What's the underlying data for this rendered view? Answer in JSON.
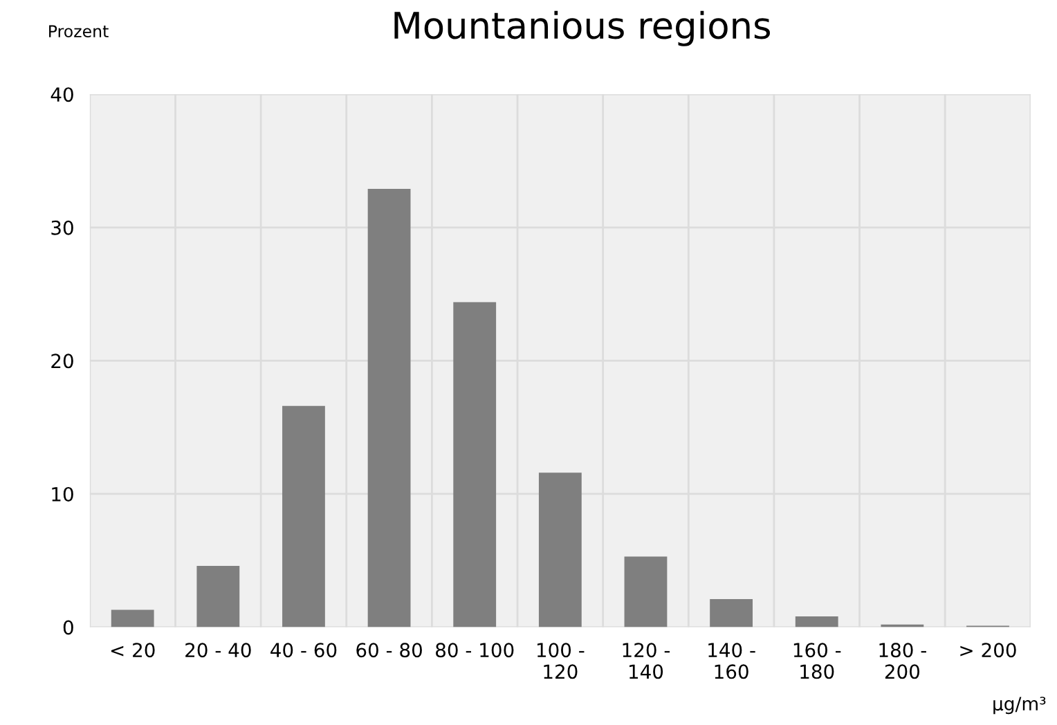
{
  "chart_data": {
    "type": "bar",
    "title": "Mountanious regions",
    "ylabel": "Prozent",
    "xlabel": "µg/m³",
    "categories": [
      "< 20",
      "20 - 40",
      "40 - 60",
      "60 - 80",
      "80 - 100",
      "100 -\n120",
      "120 -\n140",
      "140 -\n160",
      "160 -\n180",
      "180 -\n200",
      "> 200"
    ],
    "values": [
      1.3,
      4.6,
      16.6,
      32.9,
      24.4,
      11.6,
      5.3,
      2.1,
      0.8,
      0.2,
      0.1
    ],
    "color": "#7f7f7f",
    "ylim": [
      0,
      40
    ],
    "yticks": [
      0,
      10,
      20,
      30,
      40
    ],
    "grid": true
  }
}
